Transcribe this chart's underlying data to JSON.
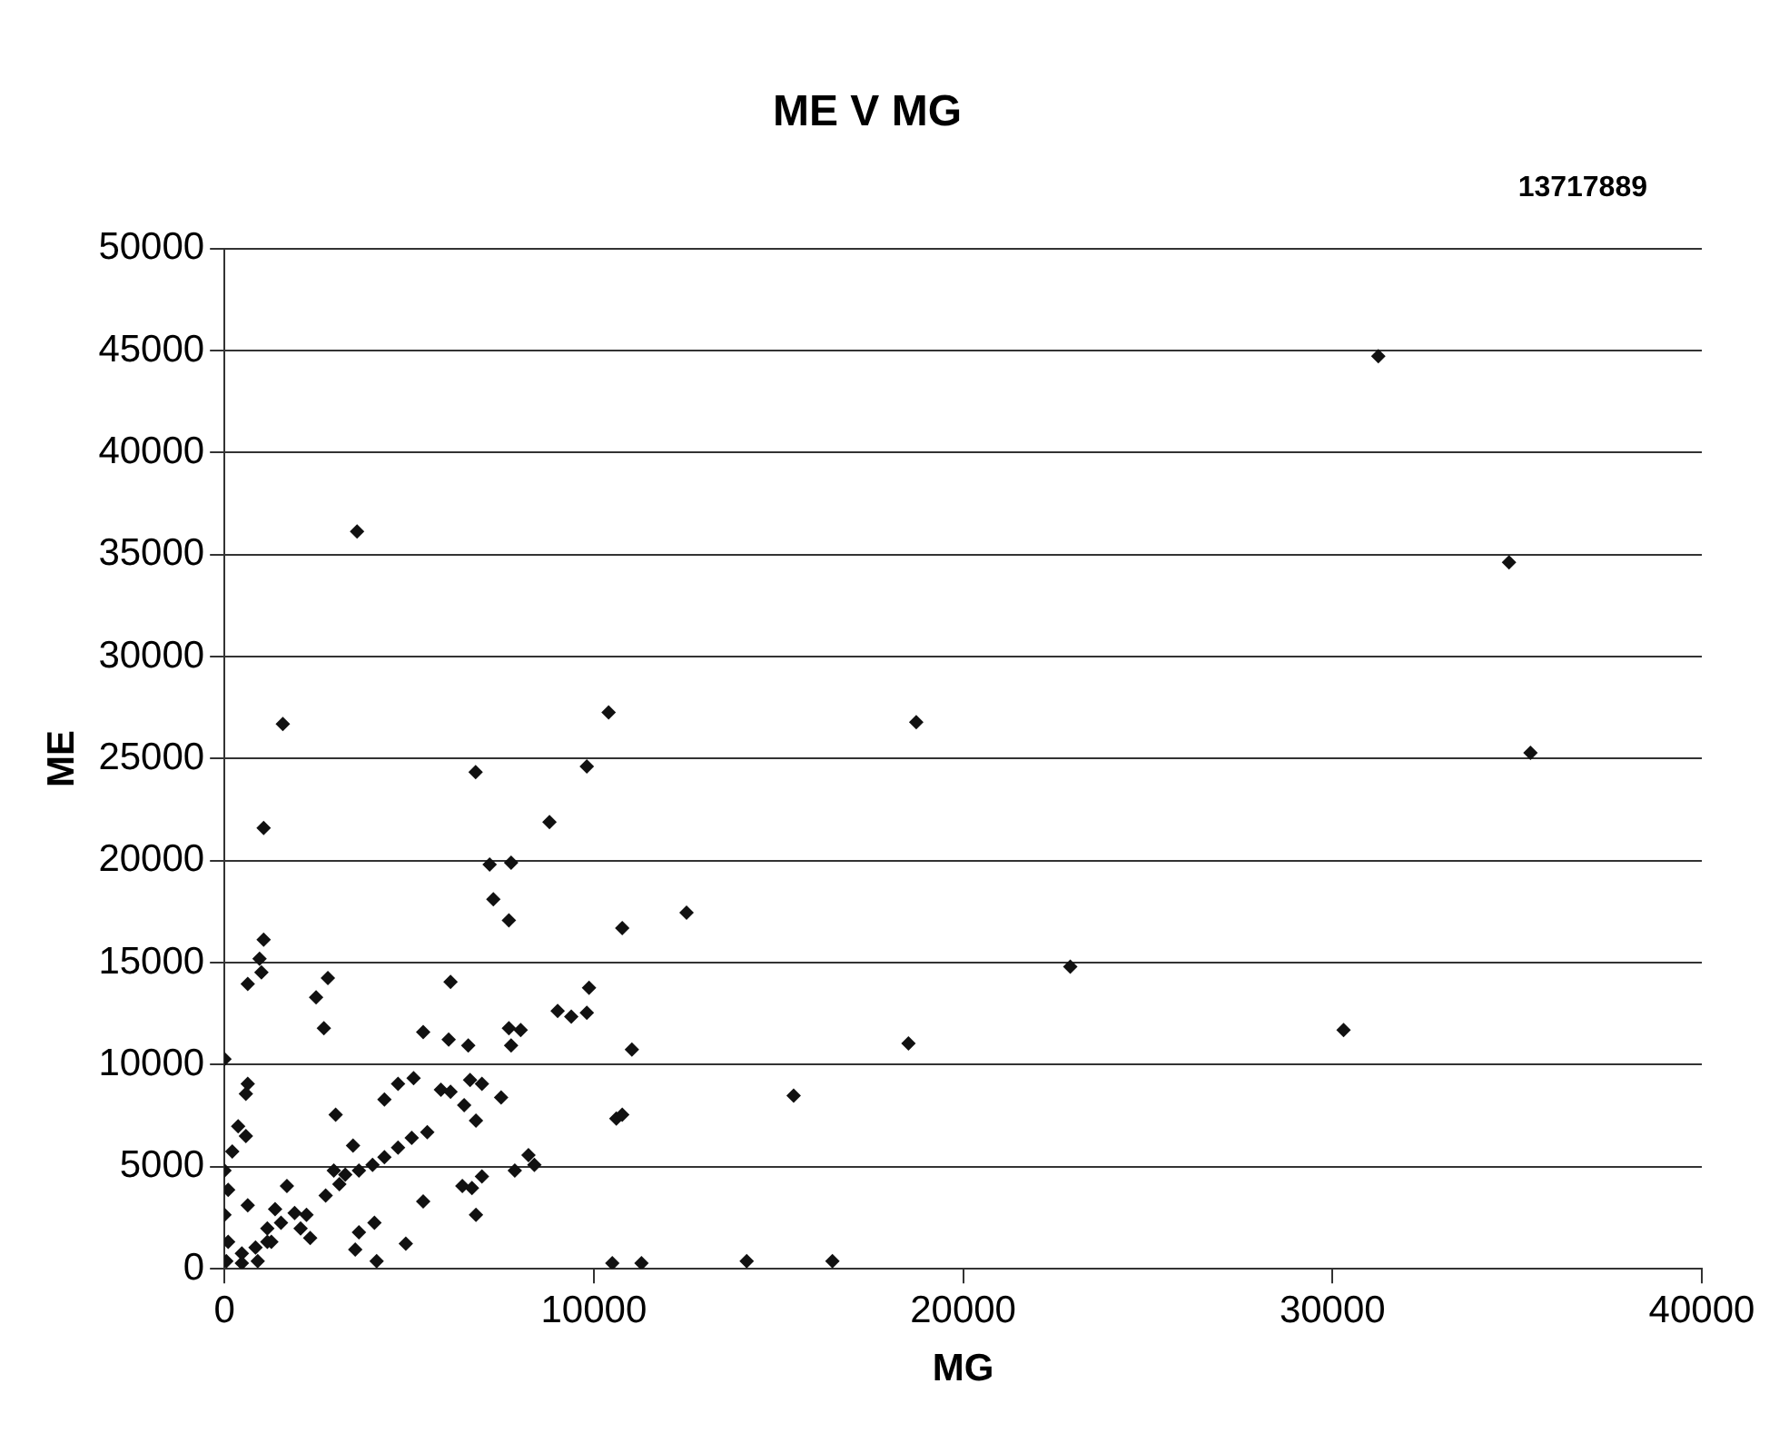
{
  "chart_data": {
    "type": "scatter",
    "title": "ME V MG",
    "annotations": [
      "13717889"
    ],
    "xlabel": "MG",
    "ylabel": "ME",
    "xlim": [
      0,
      40000
    ],
    "xticks": [
      0,
      10000,
      20000,
      30000,
      40000
    ],
    "ylim": [
      0,
      50000
    ],
    "yticks": [
      0,
      5000,
      10000,
      15000,
      20000,
      25000,
      30000,
      35000,
      40000,
      45000,
      50000
    ],
    "grid": "y",
    "marker": "diamond",
    "legend": false,
    "series": [
      {
        "color": "#111111",
        "x": [
          31240,
          3590,
          34780,
          35360,
          10400,
          1580,
          18730,
          6800,
          9810,
          1060,
          8800,
          7180,
          7760,
          7280,
          7700,
          1060,
          950,
          1000,
          630,
          2800,
          2480,
          2690,
          6120,
          5380,
          6070,
          6600,
          7700,
          8020,
          7760,
          9020,
          9390,
          9810,
          9870,
          0,
          630,
          580,
          4700,
          5120,
          4330,
          5860,
          6120,
          6650,
          6970,
          7490,
          6490,
          6810,
          3010,
          370,
          580,
          3480,
          5070,
          5490,
          4700,
          4330,
          4010,
          3640,
          3270,
          2960,
          3110,
          2740,
          8230,
          8390,
          7860,
          6970,
          6440,
          6700,
          5380,
          6810,
          1690,
          210,
          0,
          100,
          0,
          630,
          1370,
          1900,
          2220,
          1530,
          2060,
          2320,
          3640,
          4060,
          3540,
          4910,
          4120,
          100,
          470,
          840,
          1160,
          50,
          470,
          900,
          1160,
          1270,
          10770,
          12510,
          11030,
          18520,
          15410,
          10610,
          10770,
          10500,
          11290,
          14140,
          16460,
          22900,
          30300
        ],
        "values": [
          44720,
          36130,
          34620,
          25280,
          27260,
          26700,
          26790,
          24340,
          24620,
          21600,
          21890,
          19810,
          19900,
          18110,
          17080,
          16130,
          15190,
          14530,
          13960,
          14250,
          13300,
          11790,
          14060,
          11600,
          11230,
          10940,
          11790,
          11700,
          10940,
          12640,
          12360,
          12550,
          13770,
          10280,
          9060,
          8580,
          9060,
          9340,
          8300,
          8770,
          8680,
          9250,
          9060,
          8400,
          8020,
          7260,
          7550,
          6980,
          6510,
          6040,
          6420,
          6700,
          5940,
          5470,
          5090,
          4810,
          4620,
          4810,
          4150,
          3590,
          5570,
          5090,
          4810,
          4530,
          4060,
          3960,
          3300,
          2640,
          4060,
          5750,
          4810,
          3870,
          2640,
          3110,
          2920,
          2740,
          2640,
          2260,
          1980,
          1510,
          1790,
          2260,
          940,
          1230,
          380,
          1320,
          750,
          1040,
          1320,
          380,
          280,
          380,
          1980,
          1320,
          16700,
          17450,
          10750,
          11040,
          8490,
          7360,
          7550,
          280,
          280,
          380,
          380,
          14800,
          11700
        ]
      }
    ]
  }
}
